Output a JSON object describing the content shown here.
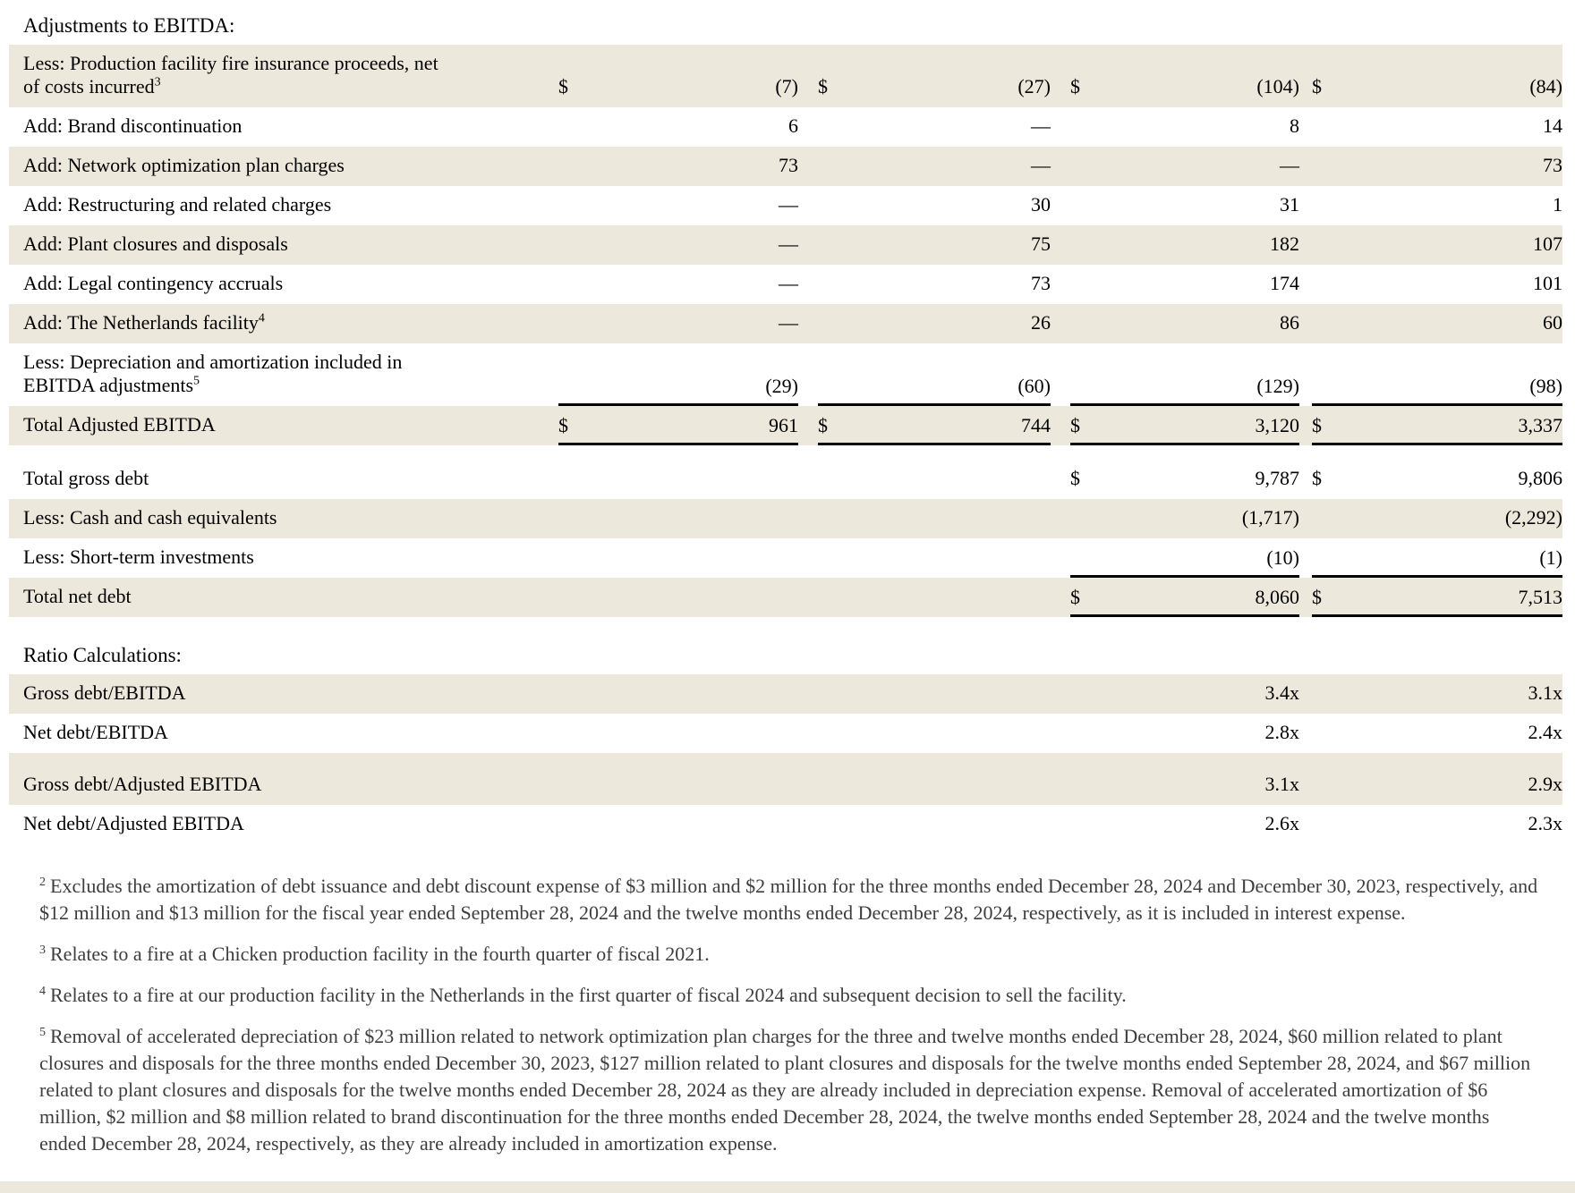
{
  "title": "Adjustments to EBITDA:",
  "colors": {
    "stripe": "#ede8dc",
    "rule": "#000000",
    "footnote_text": "#3d3d3d"
  },
  "ebitda_table": {
    "rows": [
      {
        "label": "Less: Production facility fire insurance proceeds, net of costs incurred",
        "sup": "3",
        "shade": true,
        "tall": true,
        "underline": false,
        "cells": [
          {
            "d": "$",
            "v": "(7)"
          },
          {
            "d": "$",
            "v": "(27)"
          },
          {
            "d": "$",
            "v": "(104)"
          },
          {
            "d": "$",
            "v": "(84)"
          }
        ]
      },
      {
        "label": "Add: Brand discontinuation",
        "sup": "",
        "shade": false,
        "underline": false,
        "cells": [
          {
            "d": "",
            "v": "6"
          },
          {
            "d": "",
            "v": "—"
          },
          {
            "d": "",
            "v": "8"
          },
          {
            "d": "",
            "v": "14"
          }
        ]
      },
      {
        "label": "Add: Network optimization plan charges",
        "sup": "",
        "shade": true,
        "underline": false,
        "cells": [
          {
            "d": "",
            "v": "73"
          },
          {
            "d": "",
            "v": "—"
          },
          {
            "d": "",
            "v": "—"
          },
          {
            "d": "",
            "v": "73"
          }
        ]
      },
      {
        "label": "Add: Restructuring and related charges",
        "sup": "",
        "shade": false,
        "underline": false,
        "cells": [
          {
            "d": "",
            "v": "—"
          },
          {
            "d": "",
            "v": "30"
          },
          {
            "d": "",
            "v": "31"
          },
          {
            "d": "",
            "v": "1"
          }
        ]
      },
      {
        "label": "Add: Plant closures and disposals",
        "sup": "",
        "shade": true,
        "underline": false,
        "cells": [
          {
            "d": "",
            "v": "—"
          },
          {
            "d": "",
            "v": "75"
          },
          {
            "d": "",
            "v": "182"
          },
          {
            "d": "",
            "v": "107"
          }
        ]
      },
      {
        "label": "Add: Legal contingency accruals",
        "sup": "",
        "shade": false,
        "underline": false,
        "cells": [
          {
            "d": "",
            "v": "—"
          },
          {
            "d": "",
            "v": "73"
          },
          {
            "d": "",
            "v": "174"
          },
          {
            "d": "",
            "v": "101"
          }
        ]
      },
      {
        "label": "Add: The Netherlands facility",
        "sup": "4",
        "shade": true,
        "underline": false,
        "cells": [
          {
            "d": "",
            "v": "—"
          },
          {
            "d": "",
            "v": "26"
          },
          {
            "d": "",
            "v": "86"
          },
          {
            "d": "",
            "v": "60"
          }
        ]
      },
      {
        "label": "Less: Depreciation and amortization included in EBITDA adjustments",
        "sup": "5",
        "shade": false,
        "tall": true,
        "underline": true,
        "cells": [
          {
            "d": "",
            "v": "(29)"
          },
          {
            "d": "",
            "v": "(60)"
          },
          {
            "d": "",
            "v": "(129)"
          },
          {
            "d": "",
            "v": "(98)"
          }
        ]
      },
      {
        "label": "Total Adjusted EBITDA",
        "sup": "",
        "shade": true,
        "underline": true,
        "cells": [
          {
            "d": "$",
            "v": "961"
          },
          {
            "d": "$",
            "v": "744"
          },
          {
            "d": "$",
            "v": "3,120"
          },
          {
            "d": "$",
            "v": "3,337"
          }
        ]
      }
    ]
  },
  "debt_table": {
    "rows": [
      {
        "label": "Total gross debt",
        "sup": "",
        "shade": false,
        "underline": false,
        "cells": [
          {
            "d": "$",
            "v": "9,787"
          },
          {
            "d": "$",
            "v": "9,806"
          }
        ]
      },
      {
        "label": "Less: Cash and cash equivalents",
        "sup": "",
        "shade": true,
        "underline": false,
        "cells": [
          {
            "d": "",
            "v": "(1,717)"
          },
          {
            "d": "",
            "v": "(2,292)"
          }
        ]
      },
      {
        "label": "Less: Short-term investments",
        "sup": "",
        "shade": false,
        "underline": true,
        "cells": [
          {
            "d": "",
            "v": "(10)"
          },
          {
            "d": "",
            "v": "(1)"
          }
        ]
      },
      {
        "label": "Total net debt",
        "sup": "",
        "shade": true,
        "underline": true,
        "cells": [
          {
            "d": "$",
            "v": "8,060"
          },
          {
            "d": "$",
            "v": "7,513"
          }
        ]
      }
    ]
  },
  "ratio_section": {
    "heading": "Ratio Calculations:",
    "rows": [
      {
        "label": "Gross debt/EBITDA",
        "sup": "",
        "shade": true,
        "underline": false,
        "cells": [
          {
            "d": "",
            "v": "3.4x"
          },
          {
            "d": "",
            "v": "3.1x"
          }
        ]
      },
      {
        "label": "Net debt/EBITDA",
        "sup": "",
        "shade": false,
        "underline": false,
        "cells": [
          {
            "d": "",
            "v": "2.8x"
          },
          {
            "d": "",
            "v": "2.4x"
          }
        ]
      },
      {
        "label": "Gross debt/Adjusted EBITDA",
        "sup": "",
        "shade": true,
        "spacer_before": true,
        "underline": false,
        "cells": [
          {
            "d": "",
            "v": "3.1x"
          },
          {
            "d": "",
            "v": "2.9x"
          }
        ]
      },
      {
        "label": "Net debt/Adjusted EBITDA",
        "sup": "",
        "shade": false,
        "underline": false,
        "cells": [
          {
            "d": "",
            "v": "2.6x"
          },
          {
            "d": "",
            "v": "2.3x"
          }
        ]
      }
    ]
  },
  "footnotes": [
    {
      "marker": "2",
      "text": "Excludes the amortization of debt issuance and debt discount expense of $3 million and $2 million for the three months ended December 28, 2024 and December 30, 2023, respectively, and $12 million and $13 million for the fiscal year ended September 28, 2024 and the twelve months ended December 28, 2024, respectively, as it is included in interest expense."
    },
    {
      "marker": "3",
      "text": "Relates to a fire at a Chicken production facility in the fourth quarter of fiscal 2021."
    },
    {
      "marker": "4",
      "text": "Relates to a fire at our production facility in the Netherlands in the first quarter of fiscal 2024 and subsequent decision to sell the facility."
    },
    {
      "marker": "5",
      "text": "Removal of accelerated depreciation of $23 million related to network optimization plan charges for the three and twelve months ended December 28, 2024, $60 million related to plant closures and disposals for the three months ended December 30, 2023, $127 million related to plant closures and disposals for the twelve months ended September 28, 2024, and $67 million related to plant closures and disposals for the twelve months ended December 28, 2024 as they are already included in depreciation expense. Removal of accelerated amortization of $6 million, $2 million and $8 million related to brand discontinuation for the three months ended December 28, 2024, the twelve months ended September 28, 2024 and the twelve months ended December 28, 2024, respectively, as they are already included in amortization expense."
    }
  ]
}
